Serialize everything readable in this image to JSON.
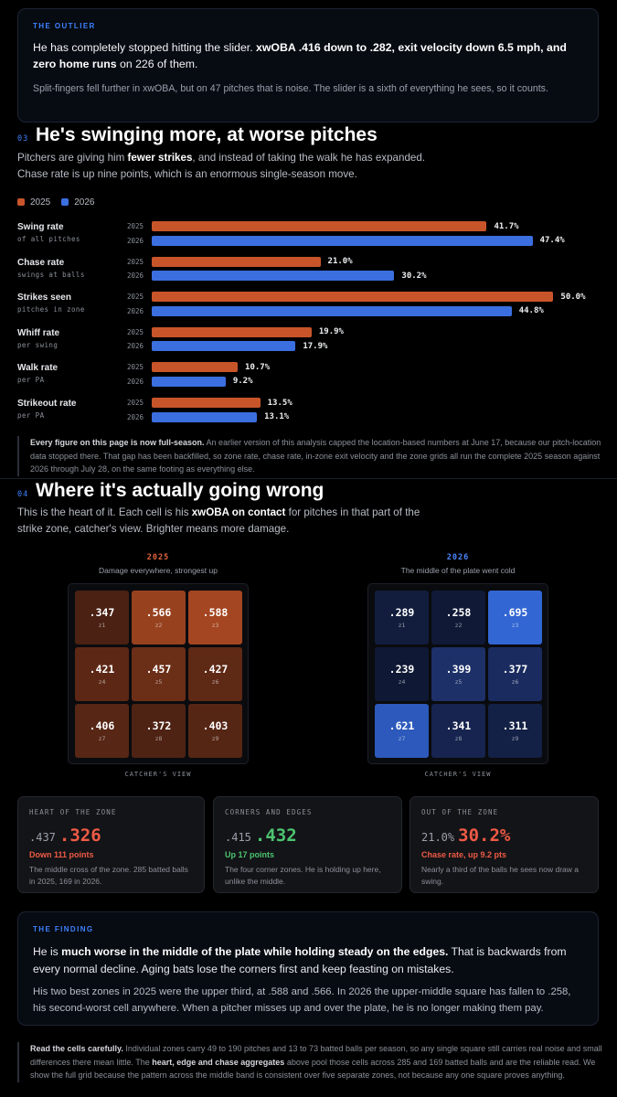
{
  "outlier": {
    "kicker": "THE OUTLIER",
    "p1_pre": "He has completely stopped hitting the slider. ",
    "p1_bold": "xwOBA .416 down to .282, exit velocity down 6.5 mph, and zero home runs",
    "p1_post": " on 226 of them.",
    "p2": "Split-fingers fell further in xwOBA, but on 47 pitches that is noise. The slider is a sixth of everything he sees, so it counts."
  },
  "section3": {
    "num": "03",
    "title": "He's swinging more, at worse pitches",
    "lede_a": "Pitchers are giving him ",
    "lede_bold": "fewer strikes",
    "lede_b": ", and instead of taking the walk he has expanded. Chase rate is up nine points, which is an enormous single-season move."
  },
  "legend": {
    "a": "2025",
    "b": "2026",
    "color_a": "#c8552a",
    "color_b": "#3b6fe0"
  },
  "chart_data": {
    "type": "bar",
    "orientation": "horizontal",
    "categories": [
      "Swing rate",
      "Chase rate",
      "Strikes seen",
      "Whiff rate",
      "Walk rate",
      "Strikeout rate"
    ],
    "subtitles": [
      "of all pitches",
      "swings at balls",
      "pitches in zone",
      "per swing",
      "per PA",
      "per PA"
    ],
    "series": [
      {
        "name": "2025",
        "color": "#c8552a",
        "values": [
          41.7,
          21.0,
          50.0,
          19.9,
          10.7,
          13.5
        ],
        "labels": [
          "41.7%",
          "21.0%",
          "50.0%",
          "19.9%",
          "10.7%",
          "13.5%"
        ]
      },
      {
        "name": "2026",
        "color": "#3b6fe0",
        "values": [
          47.4,
          30.2,
          44.8,
          17.9,
          9.2,
          13.1
        ],
        "labels": [
          "47.4%",
          "30.2%",
          "44.8%",
          "17.9%",
          "9.2%",
          "13.1%"
        ]
      }
    ],
    "xlim": [
      0,
      52
    ]
  },
  "note1": {
    "bold": "Every figure on this page is now full-season.",
    "text": " An earlier version of this analysis capped the location-based numbers at June 17, because our pitch-location data stopped there. That gap has been backfilled, so zone rate, chase rate, in-zone exit velocity and the zone grids all run the complete 2025 season against 2026 through July 28, on the same footing as everything else."
  },
  "section4": {
    "num": "04",
    "title": "Where it's actually going wrong",
    "lede_a": "This is the heart of it. Each cell is his ",
    "lede_bold": "xwOBA on contact",
    "lede_b": " for pitches in that part of the strike zone, catcher's view. Brighter means more damage."
  },
  "heatmaps": [
    {
      "title": "2025",
      "subtitle": "Damage everywhere, strongest up",
      "caption": "CATCHER'S VIEW",
      "cells": [
        {
          "value": ".347",
          "zone": "z1",
          "color": "#4a2113"
        },
        {
          "value": ".566",
          "zone": "z2",
          "color": "#97411f"
        },
        {
          "value": ".588",
          "zone": "z3",
          "color": "#a44621"
        },
        {
          "value": ".421",
          "zone": "z4",
          "color": "#5c2815"
        },
        {
          "value": ".457",
          "zone": "z5",
          "color": "#6b2e17"
        },
        {
          "value": ".427",
          "zone": "z6",
          "color": "#5e2915"
        },
        {
          "value": ".406",
          "zone": "z7",
          "color": "#572615"
        },
        {
          "value": ".372",
          "zone": "z8",
          "color": "#4e2314"
        },
        {
          "value": ".403",
          "zone": "z9",
          "color": "#562615"
        }
      ]
    },
    {
      "title": "2026",
      "subtitle": "The middle of the plate went cold",
      "caption": "CATCHER'S VIEW",
      "cells": [
        {
          "value": ".289",
          "zone": "z1",
          "color": "#121d3d"
        },
        {
          "value": ".258",
          "zone": "z2",
          "color": "#101a37"
        },
        {
          "value": ".695",
          "zone": "z3",
          "color": "#3266d3"
        },
        {
          "value": ".239",
          "zone": "z4",
          "color": "#0f1834"
        },
        {
          "value": ".399",
          "zone": "z5",
          "color": "#1d3068"
        },
        {
          "value": ".377",
          "zone": "z6",
          "color": "#1a2b5f"
        },
        {
          "value": ".621",
          "zone": "z7",
          "color": "#2c59bb"
        },
        {
          "value": ".341",
          "zone": "z8",
          "color": "#16244f"
        },
        {
          "value": ".311",
          "zone": "z9",
          "color": "#142146"
        }
      ]
    }
  ],
  "cards": [
    {
      "label": "HEART OF THE ZONE",
      "old": ".437",
      "new": ".326",
      "change": "Down 111 points",
      "tone": "red",
      "desc": "The middle cross of the zone. 285 batted balls in 2025, 169 in 2026."
    },
    {
      "label": "CORNERS AND EDGES",
      "old": ".415",
      "new": ".432",
      "change": "Up 17 points",
      "tone": "green",
      "desc": "The four corner zones. He is holding up here, unlike the middle."
    },
    {
      "label": "OUT OF THE ZONE",
      "old": "21.0%",
      "new": "30.2%",
      "change": "Chase rate, up 9.2 pts",
      "tone": "red",
      "desc": "Nearly a third of the balls he sees now draw a swing."
    }
  ],
  "finding": {
    "kicker": "THE FINDING",
    "p1_a": "He is ",
    "p1_bold": "much worse in the middle of the plate while holding steady on the edges.",
    "p1_b": " That is backwards from every normal decline. Aging bats lose the corners first and keep feasting on mistakes.",
    "p2": "His two best zones in 2025 were the upper third, at .588 and .566. In 2026 the upper-middle square has fallen to .258, his second-worst cell anywhere. When a pitcher misses up and over the plate, he is no longer making them pay."
  },
  "note2": {
    "bold1": "Read the cells carefully.",
    "text1": " Individual zones carry 49 to 190 pitches and 13 to 73 batted balls per season, so any single square still carries real noise and small differences there mean little. The ",
    "bold2": "heart, edge and chase aggregates",
    "text2": " above pool those cells across 285 and 169 batted balls and are the reliable read. We show the full grid because the pattern across the middle band is consistent over five separate zones, not because any one square proves anything."
  }
}
